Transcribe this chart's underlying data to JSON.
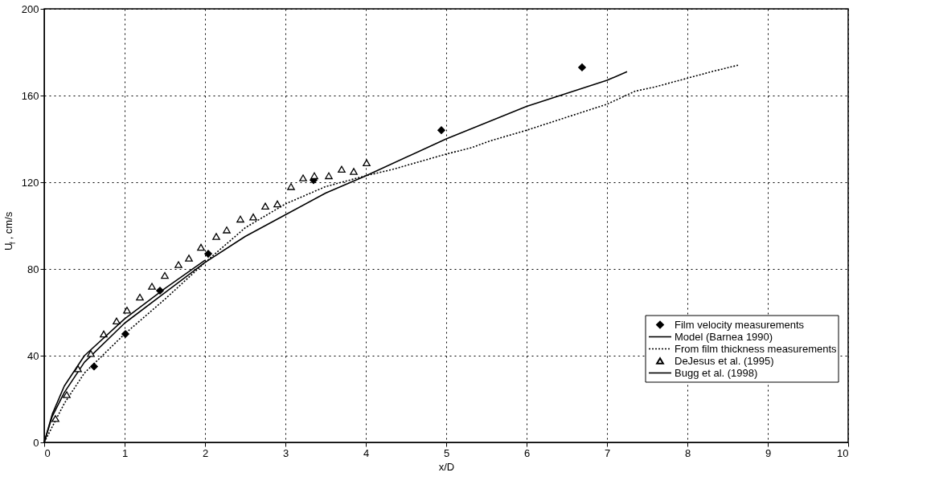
{
  "chart_data": {
    "type": "line",
    "xlabel": "x/D",
    "ylabel": "U$_{f}$, cm/s",
    "xlim": [
      0,
      10
    ],
    "xticks": [
      0,
      1,
      2,
      3,
      4,
      5,
      6,
      7,
      8,
      9,
      10
    ],
    "ylim": [
      0,
      200
    ],
    "yticks": [
      0,
      40,
      80,
      120,
      160,
      200
    ],
    "grid": true,
    "legend": "bottom right",
    "series": [
      {
        "name": "Film velocity measurements",
        "type": "scatter",
        "marker": "diamond",
        "color": "#000000",
        "x": [
          0.62,
          1.01,
          1.44,
          2.04,
          3.35,
          4.94,
          6.69
        ],
        "values": [
          35,
          50,
          70,
          87,
          121,
          144,
          173
        ]
      },
      {
        "name": "Model (Barnea 1990)",
        "type": "line",
        "marker": "none",
        "line_style": "solid",
        "color": "#000000",
        "x": [
          0,
          0.1,
          0.25,
          0.5,
          1,
          1.5,
          2,
          2.5,
          3,
          3.5,
          4,
          5,
          6,
          7,
          7.25
        ],
        "values": [
          0,
          12,
          23,
          37,
          55,
          69,
          83,
          95,
          105,
          115,
          123,
          140,
          155,
          167,
          171
        ]
      },
      {
        "name": "From film thickness measurements",
        "type": "line",
        "marker": "none",
        "line_style": "dotted",
        "color": "#000000",
        "x": [
          0,
          0.25,
          0.5,
          1,
          1.5,
          2,
          2.5,
          3,
          3.5,
          4,
          4.34,
          5,
          5.32,
          5.54,
          6,
          6.5,
          7,
          7.35,
          7.6,
          8,
          8.3,
          8.63
        ],
        "values": [
          0,
          18,
          32,
          50,
          66,
          83,
          99,
          110,
          118,
          123,
          126,
          133,
          136,
          139,
          144,
          150,
          156,
          162,
          164,
          168,
          171,
          174
        ]
      },
      {
        "name": "DeJesus et al. (1995)",
        "type": "scatter",
        "marker": "triangle",
        "color": "#000000",
        "x": [
          0.14,
          0.28,
          0.42,
          0.58,
          0.74,
          0.9,
          1.03,
          1.19,
          1.34,
          1.5,
          1.67,
          1.8,
          1.95,
          2.14,
          2.27,
          2.44,
          2.6,
          2.75,
          2.9,
          3.07,
          3.22,
          3.36,
          3.54,
          3.7,
          3.85,
          4.01
        ],
        "values": [
          11,
          22,
          34,
          41,
          50,
          56,
          61,
          67,
          72,
          77,
          82,
          85,
          90,
          95,
          98,
          103,
          104,
          109,
          110,
          118,
          122,
          123,
          123,
          126,
          125,
          129
        ]
      },
      {
        "name": "Bugg et al. (1998)",
        "type": "line",
        "marker": "none",
        "line_style": "solid",
        "color": "#000000",
        "x": [
          0,
          0.1,
          0.25,
          0.5,
          1,
          1.5,
          2
        ],
        "values": [
          0,
          13,
          26,
          40,
          57,
          71,
          84
        ]
      }
    ]
  }
}
